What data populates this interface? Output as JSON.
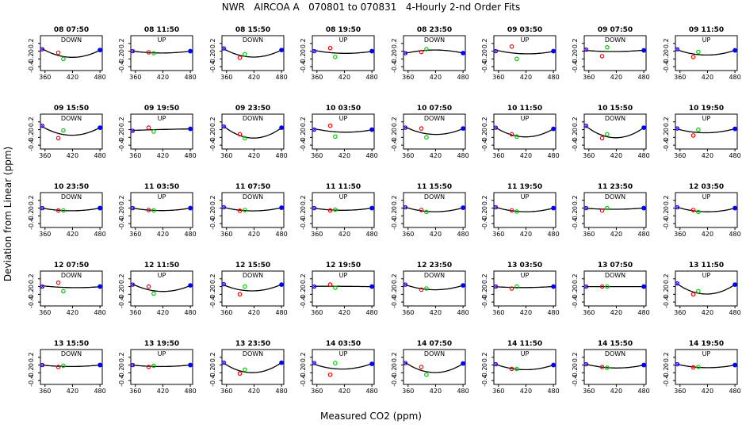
{
  "title": "NWR   AIRCOA A   070801 to 070831   4-Hourly 2-nd Order Fits",
  "xlabel": "Measured CO2 (ppm)",
  "ylabel": "Deviation from Linear (ppm)",
  "chart_data": {
    "type": "scatter",
    "grid": "5 rows x 8 columns of small panels, each with a fitted quadratic curve",
    "xlim": [
      350,
      485
    ],
    "ylim": [
      -0.5,
      0.4
    ],
    "xticks": [
      360,
      420,
      480
    ],
    "yticks": [
      -0.4,
      -0.2,
      0.0,
      0.2
    ],
    "ytick_labels": [
      "-0.4",
      "-0.2",
      "0",
      "0.2"
    ],
    "point_colors": {
      "curve": "#000000",
      "ends": "#0000ff",
      "low_mid": "#ff0000",
      "high_mid": "#00cc00",
      "cross": "#8800cc"
    },
    "panels": [
      {
        "title": "08 07:50",
        "label": "DOWN",
        "points": [
          [
            354,
            0.05
          ],
          [
            389,
            -0.04
          ],
          [
            400,
            -0.2
          ],
          [
            480,
            0.03
          ]
        ]
      },
      {
        "title": "08 11:50",
        "label": "UP",
        "points": [
          [
            354,
            0.0
          ],
          [
            389,
            -0.03
          ],
          [
            400,
            -0.05
          ],
          [
            480,
            0.0
          ]
        ]
      },
      {
        "title": "08 15:50",
        "label": "DOWN",
        "points": [
          [
            354,
            0.07
          ],
          [
            389,
            -0.17
          ],
          [
            400,
            -0.08
          ],
          [
            480,
            0.03
          ]
        ]
      },
      {
        "title": "08 19:50",
        "label": "UP",
        "points": [
          [
            354,
            0.0
          ],
          [
            389,
            0.08
          ],
          [
            400,
            -0.15
          ],
          [
            480,
            0.0
          ]
        ]
      },
      {
        "title": "08 23:50",
        "label": "DOWN",
        "points": [
          [
            354,
            -0.05
          ],
          [
            389,
            -0.02
          ],
          [
            400,
            0.05
          ],
          [
            480,
            -0.05
          ]
        ]
      },
      {
        "title": "09 03:50",
        "label": "UP",
        "points": [
          [
            354,
            0.0
          ],
          [
            389,
            0.12
          ],
          [
            400,
            -0.2
          ],
          [
            480,
            0.0
          ]
        ]
      },
      {
        "title": "09 07:50",
        "label": "DOWN",
        "points": [
          [
            354,
            0.04
          ],
          [
            389,
            -0.13
          ],
          [
            400,
            0.1
          ],
          [
            480,
            0.02
          ]
        ]
      },
      {
        "title": "09 11:50",
        "label": "UP",
        "points": [
          [
            354,
            0.05
          ],
          [
            389,
            -0.15
          ],
          [
            400,
            -0.02
          ],
          [
            480,
            0.02
          ]
        ]
      },
      {
        "title": "09 15:50",
        "label": "DOWN",
        "points": [
          [
            354,
            0.1
          ],
          [
            389,
            -0.22
          ],
          [
            400,
            -0.02
          ],
          [
            480,
            0.05
          ]
        ]
      },
      {
        "title": "09 19:50",
        "label": "UP",
        "points": [
          [
            354,
            -0.03
          ],
          [
            389,
            0.05
          ],
          [
            400,
            -0.05
          ],
          [
            480,
            0.02
          ]
        ]
      },
      {
        "title": "09 23:50",
        "label": "DOWN",
        "points": [
          [
            354,
            0.08
          ],
          [
            389,
            -0.12
          ],
          [
            400,
            -0.22
          ],
          [
            480,
            0.05
          ]
        ]
      },
      {
        "title": "10 03:50",
        "label": "UP",
        "points": [
          [
            354,
            0.0
          ],
          [
            389,
            0.1
          ],
          [
            400,
            -0.18
          ],
          [
            480,
            0.0
          ]
        ]
      },
      {
        "title": "10 07:50",
        "label": "DOWN",
        "points": [
          [
            354,
            0.05
          ],
          [
            389,
            0.03
          ],
          [
            400,
            -0.2
          ],
          [
            480,
            0.03
          ]
        ]
      },
      {
        "title": "10 11:50",
        "label": "UP",
        "points": [
          [
            354,
            0.05
          ],
          [
            389,
            -0.12
          ],
          [
            400,
            -0.18
          ],
          [
            480,
            0.02
          ]
        ]
      },
      {
        "title": "10 15:50",
        "label": "DOWN",
        "points": [
          [
            354,
            0.1
          ],
          [
            389,
            -0.22
          ],
          [
            400,
            -0.12
          ],
          [
            480,
            0.05
          ]
        ]
      },
      {
        "title": "10 19:50",
        "label": "UP",
        "points": [
          [
            354,
            0.03
          ],
          [
            389,
            -0.15
          ],
          [
            400,
            0.0
          ],
          [
            480,
            0.02
          ]
        ]
      },
      {
        "title": "10 23:50",
        "label": "DOWN",
        "points": [
          [
            354,
            0.0
          ],
          [
            389,
            -0.06
          ],
          [
            400,
            -0.06
          ],
          [
            480,
            0.0
          ]
        ]
      },
      {
        "title": "11 03:50",
        "label": "UP",
        "points": [
          [
            354,
            0.0
          ],
          [
            389,
            -0.05
          ],
          [
            400,
            -0.06
          ],
          [
            480,
            0.0
          ]
        ]
      },
      {
        "title": "11 07:50",
        "label": "DOWN",
        "points": [
          [
            354,
            0.02
          ],
          [
            389,
            -0.07
          ],
          [
            400,
            -0.05
          ],
          [
            480,
            0.01
          ]
        ]
      },
      {
        "title": "11 11:50",
        "label": "UP",
        "points": [
          [
            354,
            0.0
          ],
          [
            389,
            -0.06
          ],
          [
            400,
            -0.04
          ],
          [
            480,
            0.0
          ]
        ]
      },
      {
        "title": "11 15:50",
        "label": "DOWN",
        "points": [
          [
            354,
            0.02
          ],
          [
            389,
            -0.05
          ],
          [
            400,
            -0.1
          ],
          [
            480,
            0.01
          ]
        ]
      },
      {
        "title": "11 19:50",
        "label": "UP",
        "points": [
          [
            354,
            0.02
          ],
          [
            389,
            -0.06
          ],
          [
            400,
            -0.09
          ],
          [
            480,
            0.0
          ]
        ]
      },
      {
        "title": "11 23:50",
        "label": "DOWN",
        "points": [
          [
            354,
            0.0
          ],
          [
            389,
            -0.06
          ],
          [
            400,
            0.0
          ],
          [
            480,
            0.0
          ]
        ]
      },
      {
        "title": "12 03:50",
        "label": "UP",
        "points": [
          [
            354,
            0.02
          ],
          [
            389,
            -0.05
          ],
          [
            400,
            -0.1
          ],
          [
            480,
            0.0
          ]
        ]
      },
      {
        "title": "12 07:50",
        "label": "DOWN",
        "points": [
          [
            354,
            0.0
          ],
          [
            389,
            0.1
          ],
          [
            400,
            -0.12
          ],
          [
            480,
            0.0
          ]
        ]
      },
      {
        "title": "12 11:50",
        "label": "UP",
        "points": [
          [
            354,
            0.05
          ],
          [
            389,
            0.0
          ],
          [
            400,
            -0.18
          ],
          [
            480,
            0.03
          ]
        ]
      },
      {
        "title": "12 15:50",
        "label": "DOWN",
        "points": [
          [
            354,
            0.06
          ],
          [
            389,
            -0.2
          ],
          [
            400,
            0.0
          ],
          [
            480,
            0.05
          ]
        ]
      },
      {
        "title": "12 19:50",
        "label": "UP",
        "points": [
          [
            354,
            0.0
          ],
          [
            389,
            0.05
          ],
          [
            400,
            -0.03
          ],
          [
            480,
            0.0
          ]
        ]
      },
      {
        "title": "12 23:50",
        "label": "DOWN",
        "points": [
          [
            354,
            0.05
          ],
          [
            389,
            -0.08
          ],
          [
            400,
            -0.05
          ],
          [
            480,
            0.03
          ]
        ]
      },
      {
        "title": "13 03:50",
        "label": "UP",
        "points": [
          [
            354,
            0.0
          ],
          [
            389,
            -0.05
          ],
          [
            400,
            0.0
          ],
          [
            480,
            0.0
          ]
        ]
      },
      {
        "title": "13 07:50",
        "label": "DOWN",
        "points": [
          [
            354,
            0.0
          ],
          [
            389,
            0.0
          ],
          [
            400,
            0.0
          ],
          [
            480,
            0.0
          ]
        ]
      },
      {
        "title": "13 11:50",
        "label": "UP",
        "points": [
          [
            354,
            0.08
          ],
          [
            389,
            -0.2
          ],
          [
            400,
            -0.12
          ],
          [
            480,
            0.05
          ]
        ]
      },
      {
        "title": "13 15:50",
        "label": "DOWN",
        "points": [
          [
            354,
            0.0
          ],
          [
            389,
            -0.05
          ],
          [
            400,
            -0.02
          ],
          [
            480,
            0.0
          ]
        ]
      },
      {
        "title": "13 19:50",
        "label": "UP",
        "points": [
          [
            354,
            0.0
          ],
          [
            389,
            -0.05
          ],
          [
            400,
            -0.02
          ],
          [
            480,
            0.0
          ]
        ]
      },
      {
        "title": "13 23:50",
        "label": "DOWN",
        "points": [
          [
            354,
            0.06
          ],
          [
            389,
            -0.22
          ],
          [
            400,
            -0.12
          ],
          [
            480,
            0.06
          ]
        ]
      },
      {
        "title": "14 03:50",
        "label": "UP",
        "points": [
          [
            354,
            0.05
          ],
          [
            389,
            -0.25
          ],
          [
            400,
            0.05
          ],
          [
            480,
            0.03
          ]
        ]
      },
      {
        "title": "14 07:50",
        "label": "DOWN",
        "points": [
          [
            354,
            0.05
          ],
          [
            389,
            -0.05
          ],
          [
            400,
            -0.25
          ],
          [
            480,
            0.04
          ]
        ]
      },
      {
        "title": "14 11:50",
        "label": "UP",
        "points": [
          [
            354,
            0.02
          ],
          [
            389,
            -0.1
          ],
          [
            400,
            -0.1
          ],
          [
            480,
            0.0
          ]
        ]
      },
      {
        "title": "14 15:50",
        "label": "DOWN",
        "points": [
          [
            354,
            0.02
          ],
          [
            389,
            -0.05
          ],
          [
            400,
            -0.07
          ],
          [
            480,
            0.0
          ]
        ]
      },
      {
        "title": "14 19:50",
        "label": "UP",
        "points": [
          [
            354,
            0.02
          ],
          [
            389,
            -0.06
          ],
          [
            400,
            -0.05
          ],
          [
            480,
            0.0
          ]
        ]
      }
    ]
  }
}
